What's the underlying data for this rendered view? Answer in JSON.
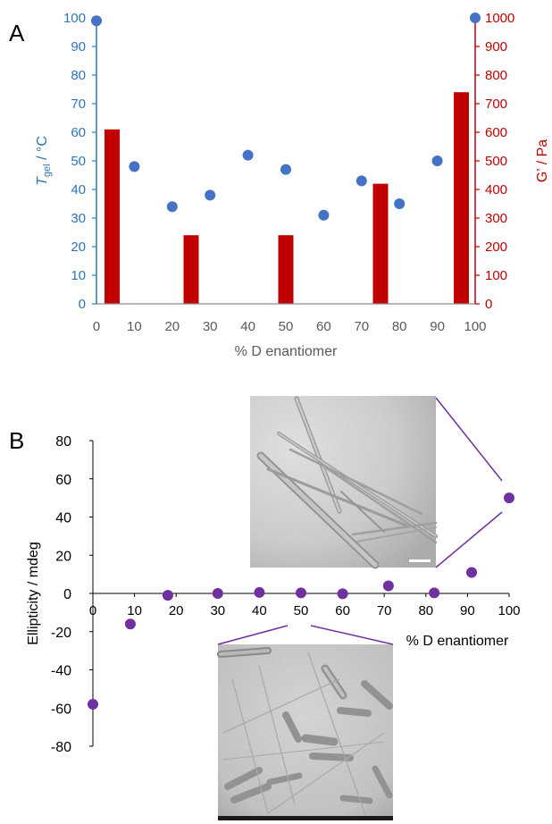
{
  "panels": {
    "a": "A",
    "b": "B"
  },
  "chart_data": [
    {
      "type": "bar",
      "panel": "A",
      "xlabel": "% D enantiomer",
      "x_ticks": [
        0,
        10,
        20,
        30,
        40,
        50,
        60,
        70,
        80,
        90,
        100
      ],
      "xlim": [
        0,
        100
      ],
      "y_left": {
        "label_main": "T",
        "label_sub": "gel",
        "label_rest": " / °C",
        "ylim": [
          0,
          100
        ],
        "ticks": [
          0,
          10,
          20,
          30,
          40,
          50,
          60,
          70,
          80,
          90,
          100
        ],
        "color": "#2E75B6"
      },
      "y_right": {
        "label": "G’ / Pa",
        "ylim": [
          0,
          1000
        ],
        "ticks": [
          0,
          100,
          200,
          300,
          400,
          500,
          600,
          700,
          800,
          900,
          1000
        ],
        "color": "#C00000"
      },
      "series": [
        {
          "kind": "scatter",
          "axis": "left",
          "color": "#4472C4",
          "x": [
            0,
            10,
            20,
            30,
            40,
            50,
            60,
            70,
            80,
            90,
            100
          ],
          "y": [
            99,
            48,
            34,
            38,
            52,
            47,
            31,
            43,
            35,
            50,
            100
          ]
        },
        {
          "kind": "bar",
          "axis": "right",
          "color": "#C00000",
          "x": [
            0,
            25,
            50,
            75,
            100
          ],
          "y": [
            610,
            240,
            240,
            420,
            740
          ]
        }
      ]
    },
    {
      "type": "scatter",
      "panel": "B",
      "xlabel": "% D enantiomer",
      "ylabel": "Ellipticity / mdeg",
      "x_ticks": [
        0,
        10,
        20,
        30,
        40,
        50,
        60,
        70,
        80,
        90,
        100
      ],
      "y_ticks": [
        -80,
        -60,
        -40,
        -20,
        0,
        20,
        40,
        60,
        80
      ],
      "xlim": [
        0,
        100
      ],
      "ylim": [
        -80,
        80
      ],
      "color": "#7030A0",
      "x": [
        0,
        9,
        18,
        30,
        40,
        50,
        60,
        71,
        82,
        91,
        100
      ],
      "y": [
        -58,
        -16,
        -1,
        0,
        0.5,
        0.3,
        -0.2,
        4,
        0.3,
        11,
        50
      ]
    }
  ],
  "insets": {
    "top": {
      "content": "TEM micrograph — long straight fibres (100% D)"
    },
    "bottom": {
      "content": "TEM micrograph — short rods and fibres (50% D)"
    }
  }
}
